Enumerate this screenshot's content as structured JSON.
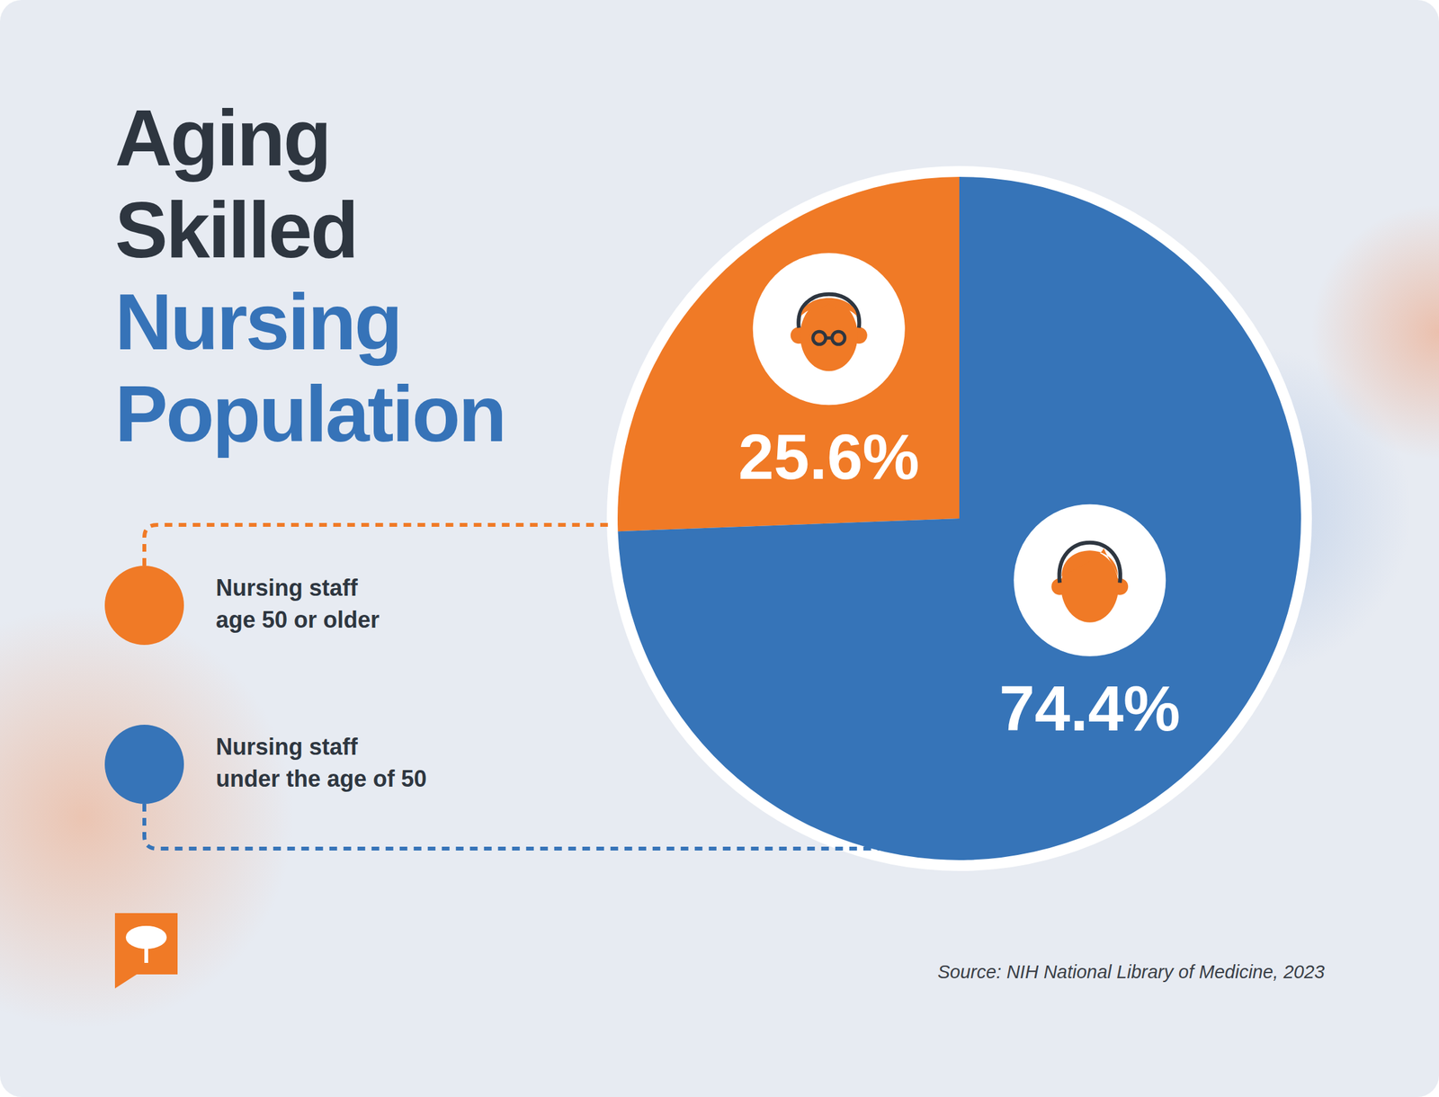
{
  "chart_data": {
    "type": "pie",
    "title": "Aging Skilled Nursing Population",
    "categories": [
      "Nursing staff age 50 or older",
      "Nursing staff under the age of 50"
    ],
    "values": [
      25.6,
      74.4
    ],
    "value_labels": [
      "25.6%",
      "74.4%"
    ],
    "colors": [
      "#f07a26",
      "#3674b8"
    ],
    "data_labels": true,
    "legend": "left",
    "caption": "Source: NIH National Library of Medicine, 2023"
  }
}
